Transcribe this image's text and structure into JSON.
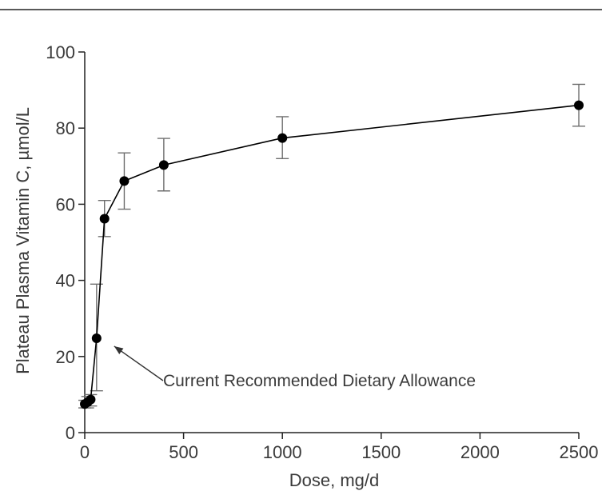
{
  "chart_data": {
    "type": "line",
    "title": "",
    "xlabel": "Dose, mg/d",
    "ylabel": "Plateau Plasma Vitamin C, µmol/L",
    "xlim": [
      0,
      2500
    ],
    "ylim": [
      0,
      100
    ],
    "x_ticks": [
      "0",
      "500",
      "1000",
      "1500",
      "2000",
      "2500"
    ],
    "y_ticks": [
      "0",
      "20",
      "40",
      "60",
      "80",
      "100"
    ],
    "grid": false,
    "legend": "none",
    "series": [
      {
        "points": [
          {
            "x": 0,
            "y": 7.5,
            "err_low": 6.5,
            "err_high": 8.5
          },
          {
            "x": 15,
            "y": 8.0,
            "err_low": 6.5,
            "err_high": 9.5
          },
          {
            "x": 30,
            "y": 8.7,
            "err_low": 7.0,
            "err_high": 10.0
          },
          {
            "x": 60,
            "y": 24.8,
            "err_low": 11.0,
            "err_high": 39.0
          },
          {
            "x": 100,
            "y": 56.2,
            "err_low": 51.5,
            "err_high": 61.0
          },
          {
            "x": 200,
            "y": 66.1,
            "err_low": 58.7,
            "err_high": 73.5
          },
          {
            "x": 400,
            "y": 70.3,
            "err_low": 63.5,
            "err_high": 77.3
          },
          {
            "x": 1000,
            "y": 77.4,
            "err_low": 72.0,
            "err_high": 83.0
          },
          {
            "x": 2500,
            "y": 86.0,
            "err_low": 80.5,
            "err_high": 91.5
          }
        ]
      }
    ],
    "annotations": [
      {
        "text": "Current Recommended Dietary Allowance",
        "target_x": 60,
        "target_y": 24.8
      }
    ],
    "colors": {
      "marker": "#000000",
      "line": "#000000",
      "error_bar": "#6e6e6e",
      "axis": "#222222",
      "text": "#3a3a3a"
    }
  }
}
